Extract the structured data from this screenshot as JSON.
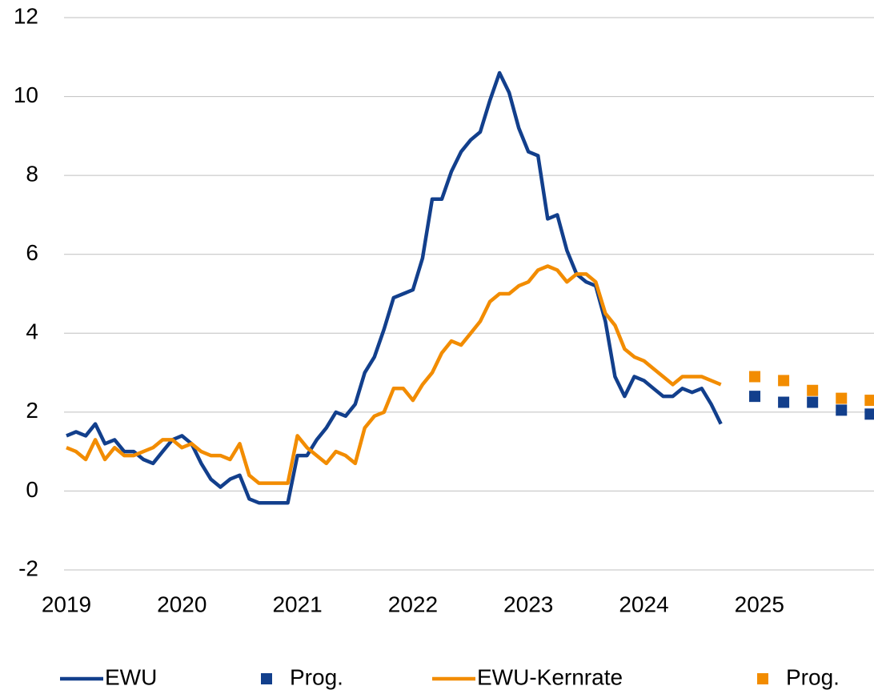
{
  "chart_data": {
    "type": "line",
    "xlim": [
      2019,
      2026
    ],
    "xticks": [
      2019,
      2020,
      2021,
      2022,
      2023,
      2024,
      2025
    ],
    "ylim": [
      -2,
      12
    ],
    "yticks": [
      -2,
      0,
      2,
      4,
      6,
      8,
      10,
      12
    ],
    "grid": true,
    "legend": "bottom",
    "series": [
      {
        "name": "EWU",
        "color": "#123f8c",
        "style": "line",
        "x": [
          2019,
          2019.083,
          2019.167,
          2019.25,
          2019.333,
          2019.417,
          2019.5,
          2019.583,
          2019.667,
          2019.75,
          2019.833,
          2019.917,
          2020,
          2020.083,
          2020.167,
          2020.25,
          2020.333,
          2020.417,
          2020.5,
          2020.583,
          2020.667,
          2020.75,
          2020.833,
          2020.917,
          2021,
          2021.083,
          2021.167,
          2021.25,
          2021.333,
          2021.417,
          2021.5,
          2021.583,
          2021.667,
          2021.75,
          2021.833,
          2021.917,
          2022,
          2022.083,
          2022.167,
          2022.25,
          2022.333,
          2022.417,
          2022.5,
          2022.583,
          2022.667,
          2022.75,
          2022.833,
          2022.917,
          2023,
          2023.083,
          2023.167,
          2023.25,
          2023.333,
          2023.417,
          2023.5,
          2023.583,
          2023.667,
          2023.75,
          2023.833,
          2023.917,
          2024,
          2024.083,
          2024.167,
          2024.25,
          2024.333,
          2024.417,
          2024.5,
          2024.583,
          2024.667
        ],
        "values": [
          1.4,
          1.5,
          1.4,
          1.7,
          1.2,
          1.3,
          1.0,
          1.0,
          0.8,
          0.7,
          1.0,
          1.3,
          1.4,
          1.2,
          0.7,
          0.3,
          0.1,
          0.3,
          0.4,
          -0.2,
          -0.3,
          -0.3,
          -0.3,
          -0.3,
          0.9,
          0.9,
          1.3,
          1.6,
          2.0,
          1.9,
          2.2,
          3.0,
          3.4,
          4.1,
          4.9,
          5.0,
          5.1,
          5.9,
          7.4,
          7.4,
          8.1,
          8.6,
          8.9,
          9.1,
          9.9,
          10.6,
          10.1,
          9.2,
          8.6,
          8.5,
          6.9,
          7.0,
          6.1,
          5.5,
          5.3,
          5.2,
          4.3,
          2.9,
          2.4,
          2.9,
          2.8,
          2.6,
          2.4,
          2.4,
          2.6,
          2.5,
          2.6,
          2.2,
          1.7
        ]
      },
      {
        "name": "Prog.",
        "color": "#123f8c",
        "style": "marker",
        "x": [
          2024.96,
          2025.21,
          2025.46,
          2025.71,
          2025.96
        ],
        "values": [
          2.4,
          2.25,
          2.25,
          2.05,
          1.95
        ]
      },
      {
        "name": "EWU-Kernrate",
        "color": "#f28c00",
        "style": "line",
        "x": [
          2019,
          2019.083,
          2019.167,
          2019.25,
          2019.333,
          2019.417,
          2019.5,
          2019.583,
          2019.667,
          2019.75,
          2019.833,
          2019.917,
          2020,
          2020.083,
          2020.167,
          2020.25,
          2020.333,
          2020.417,
          2020.5,
          2020.583,
          2020.667,
          2020.75,
          2020.833,
          2020.917,
          2021,
          2021.083,
          2021.167,
          2021.25,
          2021.333,
          2021.417,
          2021.5,
          2021.583,
          2021.667,
          2021.75,
          2021.833,
          2021.917,
          2022,
          2022.083,
          2022.167,
          2022.25,
          2022.333,
          2022.417,
          2022.5,
          2022.583,
          2022.667,
          2022.75,
          2022.833,
          2022.917,
          2023,
          2023.083,
          2023.167,
          2023.25,
          2023.333,
          2023.417,
          2023.5,
          2023.583,
          2023.667,
          2023.75,
          2023.833,
          2023.917,
          2024,
          2024.083,
          2024.167,
          2024.25,
          2024.333,
          2024.417,
          2024.5,
          2024.583,
          2024.667
        ],
        "values": [
          1.1,
          1.0,
          0.8,
          1.3,
          0.8,
          1.1,
          0.9,
          0.9,
          1.0,
          1.1,
          1.3,
          1.3,
          1.1,
          1.2,
          1.0,
          0.9,
          0.9,
          0.8,
          1.2,
          0.4,
          0.2,
          0.2,
          0.2,
          0.2,
          1.4,
          1.1,
          0.9,
          0.7,
          1.0,
          0.9,
          0.7,
          1.6,
          1.9,
          2.0,
          2.6,
          2.6,
          2.3,
          2.7,
          3.0,
          3.5,
          3.8,
          3.7,
          4.0,
          4.3,
          4.8,
          5.0,
          5.0,
          5.2,
          5.3,
          5.6,
          5.7,
          5.6,
          5.3,
          5.5,
          5.5,
          5.3,
          4.5,
          4.2,
          3.6,
          3.4,
          3.3,
          3.1,
          2.9,
          2.7,
          2.9,
          2.9,
          2.9,
          2.8,
          2.7
        ]
      },
      {
        "name": "Prog.",
        "color": "#f28c00",
        "style": "marker",
        "x": [
          2024.96,
          2025.21,
          2025.46,
          2025.71,
          2025.96
        ],
        "values": [
          2.9,
          2.8,
          2.55,
          2.35,
          2.3
        ]
      }
    ]
  }
}
